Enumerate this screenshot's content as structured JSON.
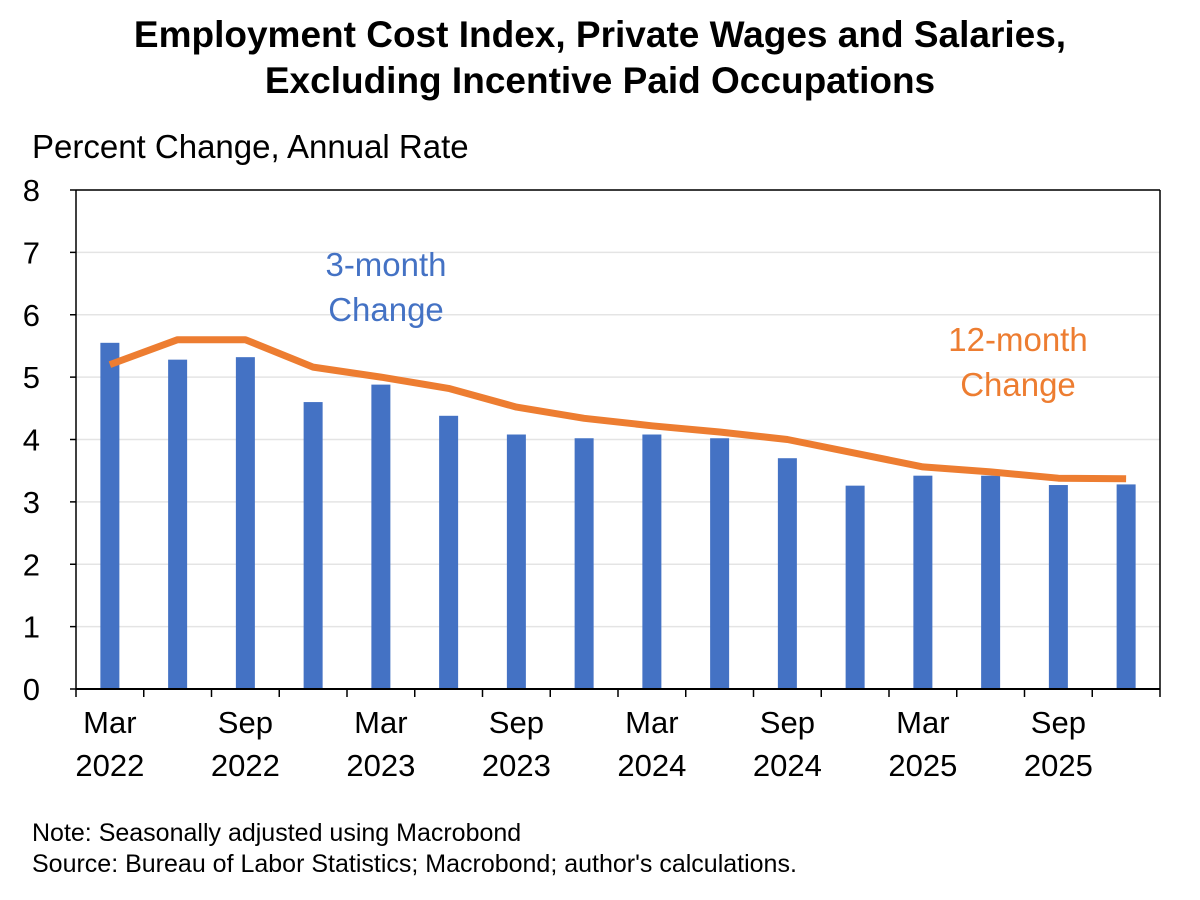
{
  "header": {
    "title_line1": "Employment Cost Index, Private Wages and Salaries,",
    "title_line2": "Excluding Incentive Paid Occupations"
  },
  "chart_data": {
    "type": "bar",
    "title": "Employment Cost Index, Private Wages and Salaries, Excluding Incentive Paid Occupations",
    "ylabel": "Percent Change, Annual Rate",
    "xlabel": "",
    "ylim": [
      0,
      8
    ],
    "yticks": [
      "0",
      "1",
      "2",
      "3",
      "4",
      "5",
      "6",
      "7",
      "8"
    ],
    "xtick_labels": [
      {
        "index": 0,
        "month": "Mar",
        "year": "2022"
      },
      {
        "index": 2,
        "month": "Sep",
        "year": "2022"
      },
      {
        "index": 4,
        "month": "Mar",
        "year": "2023"
      },
      {
        "index": 6,
        "month": "Sep",
        "year": "2023"
      },
      {
        "index": 8,
        "month": "Mar",
        "year": "2024"
      },
      {
        "index": 10,
        "month": "Sep",
        "year": "2024"
      },
      {
        "index": 12,
        "month": "Mar",
        "year": "2025"
      },
      {
        "index": 14,
        "month": "Sep",
        "year": "2025"
      }
    ],
    "categories": [
      "2022Q1",
      "2022Q2",
      "2022Q3",
      "2022Q4",
      "2023Q1",
      "2023Q2",
      "2023Q3",
      "2023Q4",
      "2024Q1",
      "2024Q2",
      "2024Q3",
      "2024Q4",
      "2025Q1",
      "2025Q2",
      "2025Q3",
      "2025Q4"
    ],
    "series": [
      {
        "name": "3-month Change",
        "type": "bar",
        "color": "#4472c4",
        "values": [
          5.55,
          5.28,
          5.32,
          4.6,
          4.88,
          4.38,
          4.08,
          4.02,
          4.08,
          4.02,
          3.7,
          3.26,
          3.42,
          3.42,
          3.27,
          3.28
        ]
      },
      {
        "name": "12-month Change",
        "type": "line",
        "color": "#ed7d31",
        "values": [
          5.2,
          5.6,
          5.6,
          5.16,
          5.0,
          4.82,
          4.52,
          4.34,
          4.22,
          4.12,
          4.0,
          3.78,
          3.56,
          3.48,
          3.38,
          3.37
        ]
      }
    ],
    "annotations": {
      "bars_line1": "3-month",
      "bars_line2": "Change",
      "line_line1": "12-month",
      "line_line2": "Change"
    },
    "grid": true
  },
  "footer": {
    "note": "Note: Seasonally adjusted using Macrobond",
    "source": "Source: Bureau of Labor Statistics; Macrobond; author's calculations."
  }
}
